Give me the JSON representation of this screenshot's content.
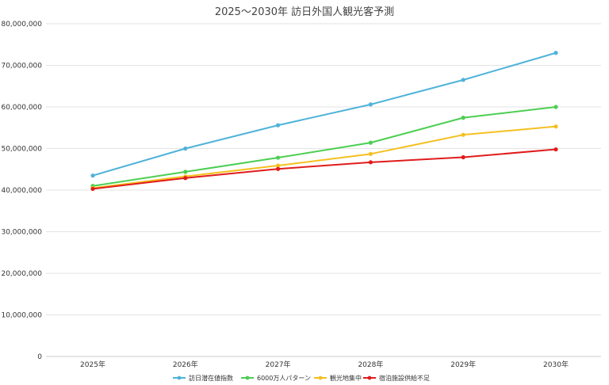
{
  "chart_data": {
    "type": "line",
    "title": "2025～2030年 訪日外国人観光客予測",
    "categories": [
      "2025年",
      "2026年",
      "2027年",
      "2028年",
      "2029年",
      "2030年"
    ],
    "ylim": [
      0,
      80000000
    ],
    "yticks": [
      "0",
      "10,000,000",
      "20,000,000",
      "30,000,000",
      "40,000,000",
      "50,000,000",
      "60,000,000",
      "70,000,000",
      "80,000,000"
    ],
    "grid": true,
    "legend_position": "bottom",
    "series": [
      {
        "name": "訪日潜在値指数",
        "color": "#4fb3d9",
        "values": [
          43500000,
          50000000,
          55600000,
          60600000,
          66500000,
          73000000
        ]
      },
      {
        "name": "6000万人パターン",
        "color": "#4cce52",
        "values": [
          41000000,
          44400000,
          47800000,
          51400000,
          57400000,
          60000000
        ]
      },
      {
        "name": "観光地集中",
        "color": "#f4c020",
        "values": [
          40500000,
          43300000,
          45900000,
          48700000,
          53300000,
          55300000
        ]
      },
      {
        "name": "宿泊施設供給不足",
        "color": "#e01c1c",
        "values": [
          40300000,
          42900000,
          45100000,
          46700000,
          47900000,
          49800000
        ]
      }
    ]
  }
}
